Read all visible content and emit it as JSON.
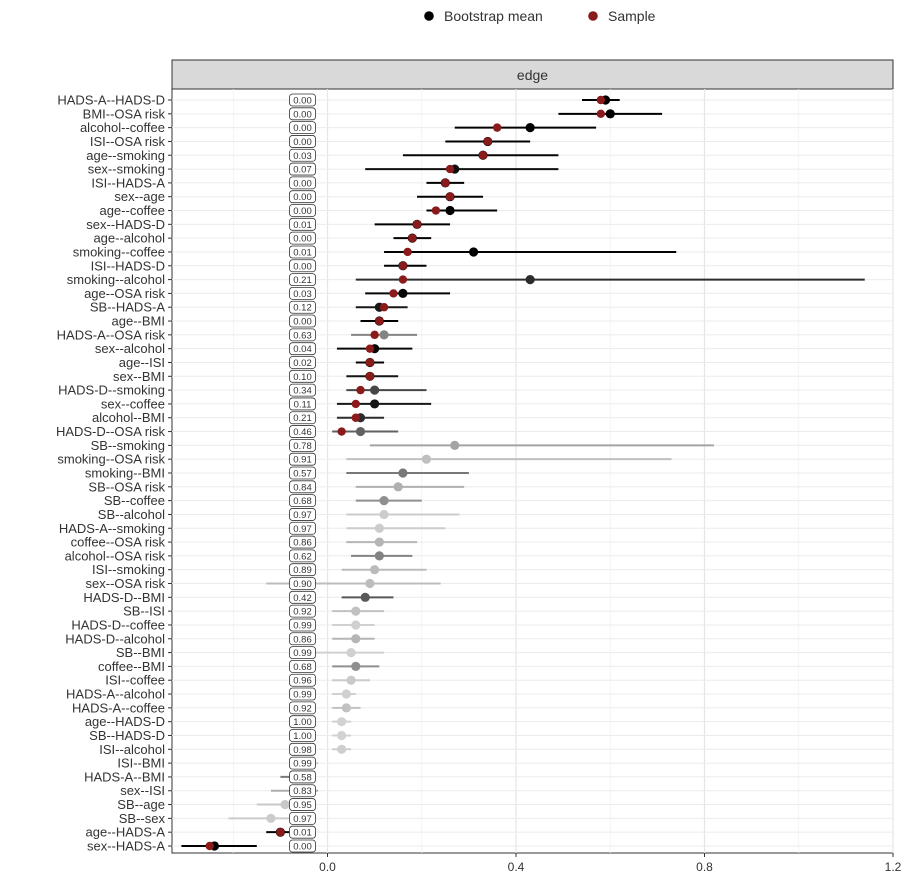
{
  "chart_data": {
    "type": "scatter",
    "title": "",
    "xlabel": "",
    "ylabel": "",
    "xlim": [
      -0.33,
      1.2
    ],
    "x_ticks": [
      0.0,
      0.4,
      0.8,
      1.2
    ],
    "x_tick_labels": [
      "0.0",
      "0.4",
      "0.8",
      "1.2"
    ],
    "grid": true,
    "legend": {
      "position": "top",
      "entries": [
        {
          "name": "Bootstrap mean",
          "color": "#000000"
        },
        {
          "name": "Sample",
          "color": "#8b1a1a"
        }
      ]
    },
    "panel_strip": "edge",
    "colors": {
      "sample": "#8b1a1a",
      "bootstrap_by_proportion": [
        "#000000",
        "#d2d2d2"
      ]
    },
    "columns": [
      "edge",
      "bootstrap_mean",
      "sample",
      "ci_lower",
      "ci_upper",
      "proportion_zero"
    ],
    "edges": [
      [
        "HADS-A--HADS-D",
        0.59,
        0.58,
        0.54,
        0.62,
        "0.00"
      ],
      [
        "BMI--OSA risk",
        0.6,
        0.58,
        0.49,
        0.71,
        "0.00"
      ],
      [
        "alcohol--coffee",
        0.43,
        0.36,
        0.27,
        0.57,
        "0.00"
      ],
      [
        "ISI--OSA risk",
        0.34,
        0.34,
        0.25,
        0.43,
        "0.00"
      ],
      [
        "age--smoking",
        0.33,
        0.33,
        0.16,
        0.49,
        "0.03"
      ],
      [
        "sex--smoking",
        0.27,
        0.26,
        0.08,
        0.49,
        "0.07"
      ],
      [
        "ISI--HADS-A",
        0.25,
        0.25,
        0.21,
        0.29,
        "0.00"
      ],
      [
        "sex--age",
        0.26,
        0.26,
        0.19,
        0.33,
        "0.00"
      ],
      [
        "age--coffee",
        0.26,
        0.23,
        0.21,
        0.36,
        "0.00"
      ],
      [
        "sex--HADS-D",
        0.19,
        0.19,
        0.1,
        0.26,
        "0.01"
      ],
      [
        "age--alcohol",
        0.18,
        0.18,
        0.14,
        0.22,
        "0.00"
      ],
      [
        "smoking--coffee",
        0.31,
        0.17,
        0.12,
        0.74,
        "0.01"
      ],
      [
        "ISI--HADS-D",
        0.16,
        0.16,
        0.12,
        0.21,
        "0.00"
      ],
      [
        "smoking--alcohol",
        0.43,
        0.16,
        0.06,
        1.14,
        "0.21"
      ],
      [
        "age--OSA risk",
        0.16,
        0.14,
        0.08,
        0.26,
        "0.03"
      ],
      [
        "SB--HADS-A",
        0.11,
        0.12,
        0.06,
        0.17,
        "0.12"
      ],
      [
        "age--BMI",
        0.11,
        0.11,
        0.07,
        0.15,
        "0.00"
      ],
      [
        "HADS-A--OSA risk",
        0.12,
        0.1,
        0.05,
        0.19,
        "0.63"
      ],
      [
        "sex--alcohol",
        0.1,
        0.09,
        0.02,
        0.18,
        "0.04"
      ],
      [
        "age--ISI",
        0.09,
        0.09,
        0.06,
        0.12,
        "0.02"
      ],
      [
        "sex--BMI",
        0.09,
        0.09,
        0.04,
        0.15,
        "0.10"
      ],
      [
        "HADS-D--smoking",
        0.1,
        0.07,
        0.04,
        0.21,
        "0.34"
      ],
      [
        "sex--coffee",
        0.1,
        0.06,
        0.02,
        0.22,
        "0.11"
      ],
      [
        "alcohol--BMI",
        0.07,
        0.06,
        0.02,
        0.12,
        "0.21"
      ],
      [
        "HADS-D--OSA risk",
        0.07,
        0.03,
        0.01,
        0.15,
        "0.46"
      ],
      [
        "SB--smoking",
        0.27,
        null,
        0.09,
        0.82,
        "0.78"
      ],
      [
        "smoking--OSA risk",
        0.21,
        null,
        0.04,
        0.73,
        "0.91"
      ],
      [
        "smoking--BMI",
        0.16,
        null,
        0.04,
        0.3,
        "0.57"
      ],
      [
        "SB--OSA risk",
        0.15,
        null,
        0.06,
        0.29,
        "0.84"
      ],
      [
        "SB--coffee",
        0.12,
        null,
        0.06,
        0.2,
        "0.68"
      ],
      [
        "SB--alcohol",
        0.12,
        null,
        0.04,
        0.28,
        "0.97"
      ],
      [
        "HADS-A--smoking",
        0.11,
        null,
        0.04,
        0.25,
        "0.97"
      ],
      [
        "coffee--OSA risk",
        0.11,
        null,
        0.04,
        0.19,
        "0.86"
      ],
      [
        "alcohol--OSA risk",
        0.11,
        null,
        0.05,
        0.18,
        "0.62"
      ],
      [
        "ISI--smoking",
        0.1,
        null,
        0.03,
        0.21,
        "0.89"
      ],
      [
        "sex--OSA risk",
        0.09,
        null,
        -0.13,
        0.24,
        "0.90"
      ],
      [
        "HADS-D--BMI",
        0.08,
        null,
        0.03,
        0.14,
        "0.42"
      ],
      [
        "SB--ISI",
        0.06,
        null,
        0.01,
        0.12,
        "0.92"
      ],
      [
        "HADS-D--coffee",
        0.06,
        null,
        0.01,
        0.1,
        "0.99"
      ],
      [
        "HADS-D--alcohol",
        0.06,
        null,
        0.01,
        0.1,
        "0.86"
      ],
      [
        "SB--BMI",
        0.05,
        null,
        -0.07,
        0.12,
        "0.99"
      ],
      [
        "coffee--BMI",
        0.06,
        null,
        0.01,
        0.11,
        "0.68"
      ],
      [
        "ISI--coffee",
        0.05,
        null,
        0.01,
        0.09,
        "0.96"
      ],
      [
        "HADS-A--alcohol",
        0.04,
        null,
        0.01,
        0.06,
        "0.99"
      ],
      [
        "HADS-A--coffee",
        0.04,
        null,
        0.01,
        0.07,
        "0.92"
      ],
      [
        "age--HADS-D",
        0.03,
        null,
        0.01,
        0.05,
        "1.00"
      ],
      [
        "SB--HADS-D",
        0.03,
        null,
        0.01,
        0.05,
        "1.00"
      ],
      [
        "ISI--alcohol",
        0.03,
        null,
        0.01,
        0.05,
        "0.98"
      ],
      [
        "ISI--BMI",
        -0.05,
        null,
        -0.08,
        -0.02,
        "0.99"
      ],
      [
        "HADS-A--BMI",
        -0.06,
        null,
        -0.1,
        -0.03,
        "0.58"
      ],
      [
        "sex--ISI",
        -0.07,
        null,
        -0.12,
        -0.02,
        "0.83"
      ],
      [
        "SB--age",
        -0.09,
        null,
        -0.15,
        -0.04,
        "0.95"
      ],
      [
        "SB--sex",
        -0.12,
        null,
        -0.21,
        -0.05,
        "0.97"
      ],
      [
        "age--HADS-A",
        -0.1,
        -0.1,
        -0.13,
        -0.07,
        "0.01"
      ],
      [
        "sex--HADS-A",
        -0.24,
        -0.25,
        -0.31,
        -0.15,
        "0.00"
      ]
    ]
  }
}
